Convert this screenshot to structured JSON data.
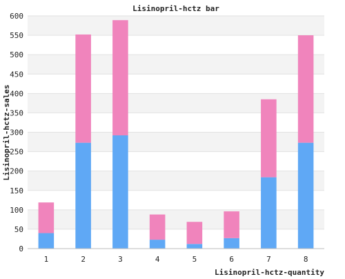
{
  "chart_data": {
    "type": "bar",
    "stacked": true,
    "title": "Lisinopril-hctz bar",
    "xlabel": "Lisinopril-hctz-quantity",
    "ylabel": "Lisinopril-hctz-sales",
    "categories": [
      "1",
      "2",
      "3",
      "4",
      "5",
      "6",
      "7",
      "8"
    ],
    "series": [
      {
        "color": "#5fa8f5",
        "values": [
          40,
          273,
          292,
          23,
          12,
          27,
          184,
          273
        ]
      },
      {
        "color": "#f084bc",
        "values": [
          79,
          279,
          297,
          65,
          57,
          69,
          201,
          277
        ]
      }
    ],
    "ylim": [
      0,
      600
    ],
    "yticks": [
      0,
      50,
      100,
      150,
      200,
      250,
      300,
      350,
      400,
      450,
      500,
      550,
      600
    ],
    "grid": true,
    "band_colors": [
      "#ffffff",
      "#f3f3f3"
    ],
    "legend": "none"
  }
}
